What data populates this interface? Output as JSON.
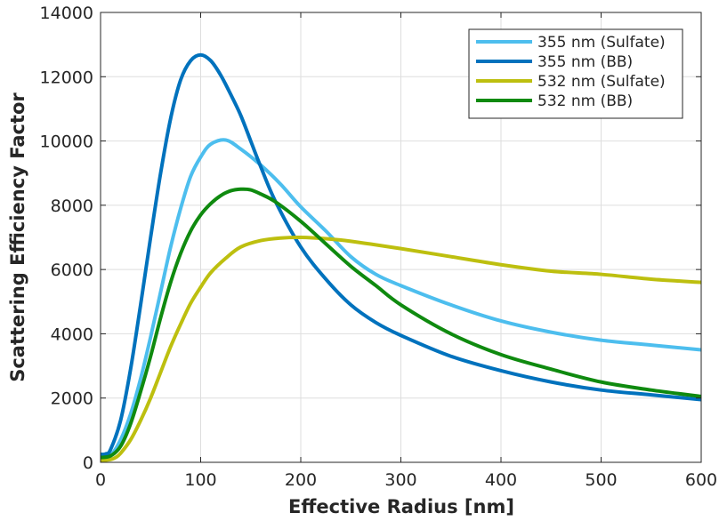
{
  "chart_data": {
    "type": "line",
    "xlabel": "Effective Radius [nm]",
    "ylabel": "Scattering Efficiency Factor",
    "xlim": [
      0,
      600
    ],
    "ylim": [
      0,
      14000
    ],
    "xticks": [
      "0",
      "100",
      "200",
      "300",
      "400",
      "500",
      "600"
    ],
    "yticks": [
      "0",
      "2000",
      "4000",
      "6000",
      "8000",
      "10000",
      "12000",
      "14000"
    ],
    "grid": true,
    "legend_position": "top-right",
    "series": [
      {
        "name": "355 nm (Sulfate)",
        "color": "#4dbeee",
        "x": [
          0,
          10,
          20,
          30,
          40,
          50,
          60,
          70,
          80,
          90,
          100,
          110,
          125,
          140,
          160,
          180,
          200,
          225,
          250,
          275,
          300,
          350,
          400,
          450,
          500,
          550,
          600
        ],
        "y": [
          150,
          220,
          700,
          1500,
          2600,
          3900,
          5300,
          6700,
          7900,
          8900,
          9500,
          9900,
          10030,
          9750,
          9250,
          8650,
          7950,
          7200,
          6400,
          5850,
          5500,
          4900,
          4400,
          4050,
          3800,
          3650,
          3500
        ]
      },
      {
        "name": "355 nm (BB)",
        "color": "#0072bd",
        "x": [
          0,
          5,
          10,
          20,
          30,
          40,
          50,
          60,
          70,
          80,
          90,
          100,
          110,
          120,
          130,
          140,
          150,
          160,
          175,
          200,
          225,
          250,
          275,
          300,
          350,
          400,
          450,
          500,
          550,
          600
        ],
        "y": [
          250,
          260,
          400,
          1300,
          2900,
          4900,
          7000,
          9000,
          10700,
          11900,
          12500,
          12680,
          12500,
          12050,
          11450,
          10800,
          10000,
          9200,
          8100,
          6700,
          5700,
          4900,
          4350,
          3950,
          3300,
          2850,
          2500,
          2250,
          2100,
          1950
        ]
      },
      {
        "name": "532 nm (Sulfate)",
        "color": "#bdbf0f",
        "x": [
          0,
          10,
          15,
          20,
          30,
          40,
          50,
          60,
          70,
          80,
          90,
          100,
          110,
          125,
          140,
          160,
          180,
          200,
          225,
          250,
          300,
          350,
          400,
          450,
          500,
          550,
          600
        ],
        "y": [
          50,
          90,
          150,
          280,
          700,
          1300,
          2000,
          2800,
          3600,
          4300,
          4950,
          5450,
          5900,
          6350,
          6700,
          6900,
          6980,
          7000,
          6960,
          6880,
          6650,
          6400,
          6150,
          5950,
          5850,
          5700,
          5600
        ]
      },
      {
        "name": "532 nm (BB)",
        "color": "#0f8a0f",
        "x": [
          0,
          10,
          20,
          30,
          40,
          50,
          60,
          70,
          80,
          90,
          100,
          110,
          120,
          130,
          140,
          150,
          160,
          175,
          200,
          225,
          250,
          275,
          300,
          350,
          400,
          450,
          500,
          550,
          600
        ],
        "y": [
          150,
          200,
          500,
          1200,
          2200,
          3300,
          4500,
          5600,
          6500,
          7200,
          7700,
          8050,
          8300,
          8450,
          8500,
          8480,
          8350,
          8100,
          7500,
          6800,
          6100,
          5500,
          4900,
          4000,
          3350,
          2900,
          2500,
          2250,
          2050
        ]
      }
    ]
  }
}
